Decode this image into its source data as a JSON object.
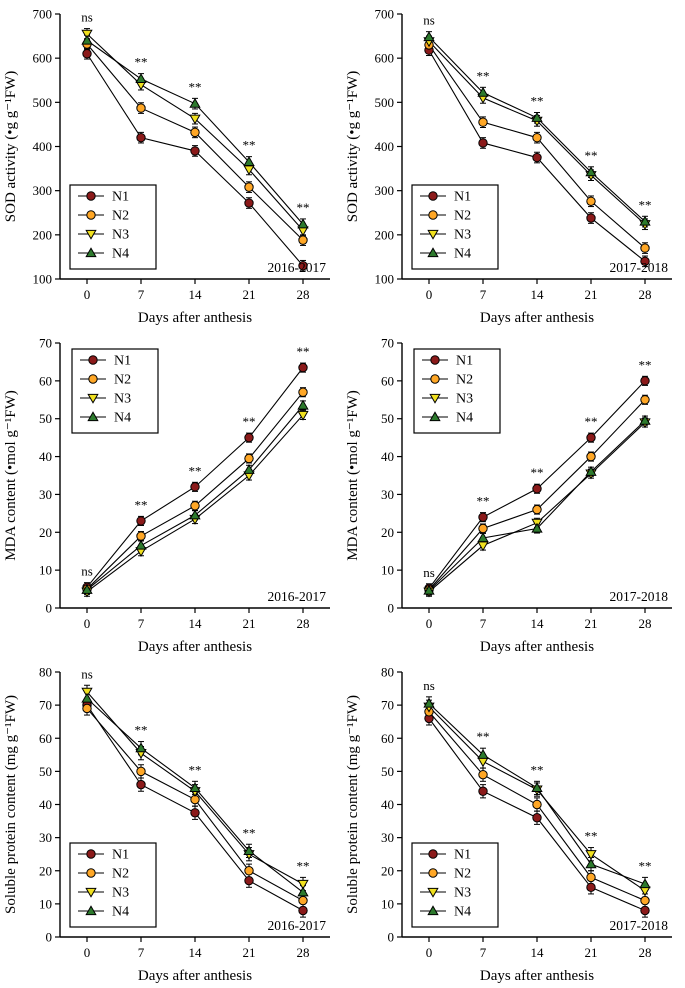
{
  "figure": {
    "bg": "#ffffff",
    "line_color": "#000000",
    "series_colors": {
      "N1": "#8b1a1a",
      "N2": "#ffa726",
      "N3": "#f0e01f",
      "N4": "#2d7a2d"
    },
    "marker_shapes": {
      "N1": "circle",
      "N2": "circle",
      "N3": "triangle-down",
      "N4": "triangle-up"
    }
  },
  "chart_data": [
    {
      "type": "line",
      "year_label": "2016-2017",
      "xlabel": "Days after anthesis",
      "ylabel": "SOD activity (•g g⁻¹FW)",
      "x": [
        0,
        7,
        14,
        21,
        28
      ],
      "xlim": [
        -3.5,
        31.5
      ],
      "ylim": [
        100,
        700
      ],
      "yticks": [
        100,
        200,
        300,
        400,
        500,
        600,
        700
      ],
      "legend_position": "bottom-left",
      "error": 12,
      "annotations": [
        {
          "x": 0,
          "label": "ns"
        },
        {
          "x": 7,
          "label": "**"
        },
        {
          "x": 14,
          "label": "**"
        },
        {
          "x": 21,
          "label": "**"
        },
        {
          "x": 28,
          "label": "**"
        }
      ],
      "series": [
        {
          "name": "N1",
          "values": [
            610,
            420,
            390,
            272,
            130
          ]
        },
        {
          "name": "N2",
          "values": [
            632,
            487,
            432,
            308,
            188
          ]
        },
        {
          "name": "N3",
          "values": [
            655,
            540,
            463,
            348,
            210
          ]
        },
        {
          "name": "N4",
          "values": [
            640,
            553,
            497,
            365,
            224
          ]
        }
      ]
    },
    {
      "type": "line",
      "year_label": "2017-2018",
      "xlabel": "Days after anthesis",
      "ylabel": "SOD activity (•g g⁻¹FW)",
      "x": [
        0,
        7,
        14,
        21,
        28
      ],
      "xlim": [
        -3.5,
        31.5
      ],
      "ylim": [
        100,
        700
      ],
      "yticks": [
        100,
        200,
        300,
        400,
        500,
        600,
        700
      ],
      "legend_position": "bottom-left",
      "error": 12,
      "annotations": [
        {
          "x": 0,
          "label": "ns"
        },
        {
          "x": 7,
          "label": "**"
        },
        {
          "x": 14,
          "label": "**"
        },
        {
          "x": 21,
          "label": "**"
        },
        {
          "x": 28,
          "label": "**"
        }
      ],
      "series": [
        {
          "name": "N1",
          "values": [
            618,
            408,
            375,
            238,
            140
          ]
        },
        {
          "name": "N2",
          "values": [
            630,
            455,
            420,
            276,
            170
          ]
        },
        {
          "name": "N3",
          "values": [
            638,
            510,
            458,
            335,
            224
          ]
        },
        {
          "name": "N4",
          "values": [
            648,
            522,
            465,
            342,
            230
          ]
        }
      ]
    },
    {
      "type": "line",
      "year_label": "2016-2017",
      "xlabel": "Days after anthesis",
      "ylabel": "MDA content (•mol g⁻¹FW)",
      "x": [
        0,
        7,
        14,
        21,
        28
      ],
      "xlim": [
        -3.5,
        31.5
      ],
      "ylim": [
        0,
        70
      ],
      "yticks": [
        0,
        10,
        20,
        30,
        40,
        50,
        60,
        70
      ],
      "legend_position": "top-left",
      "error": 1.2,
      "annotations": [
        {
          "x": 0,
          "label": "ns"
        },
        {
          "x": 7,
          "label": "**"
        },
        {
          "x": 14,
          "label": "**"
        },
        {
          "x": 21,
          "label": "**"
        },
        {
          "x": 28,
          "label": "**"
        }
      ],
      "series": [
        {
          "name": "N1",
          "values": [
            5.5,
            23,
            32,
            45,
            63.5
          ]
        },
        {
          "name": "N2",
          "values": [
            5.0,
            19,
            27,
            39.5,
            57
          ]
        },
        {
          "name": "N3",
          "values": [
            4.3,
            15,
            23.5,
            35,
            51
          ]
        },
        {
          "name": "N4",
          "values": [
            4.8,
            16.5,
            24.5,
            36.5,
            53.5
          ]
        }
      ]
    },
    {
      "type": "line",
      "year_label": "2017-2018",
      "xlabel": "Days after anthesis",
      "ylabel": "MDA content (•mol g⁻¹FW)",
      "x": [
        0,
        7,
        14,
        21,
        28
      ],
      "xlim": [
        -3.5,
        31.5
      ],
      "ylim": [
        0,
        70
      ],
      "yticks": [
        0,
        10,
        20,
        30,
        40,
        50,
        60,
        70
      ],
      "legend_position": "top-left",
      "error": 1.2,
      "annotations": [
        {
          "x": 0,
          "label": "ns"
        },
        {
          "x": 7,
          "label": "**"
        },
        {
          "x": 14,
          "label": "**"
        },
        {
          "x": 21,
          "label": "**"
        },
        {
          "x": 28,
          "label": "**"
        }
      ],
      "series": [
        {
          "name": "N1",
          "values": [
            5.2,
            24,
            31.5,
            45,
            60
          ]
        },
        {
          "name": "N2",
          "values": [
            4.8,
            21,
            26,
            40,
            55
          ]
        },
        {
          "name": "N3",
          "values": [
            4.3,
            16.5,
            22.5,
            35.5,
            49
          ]
        },
        {
          "name": "N4",
          "values": [
            4.6,
            18.5,
            21,
            36,
            49.5
          ]
        }
      ]
    },
    {
      "type": "line",
      "year_label": "2016-2017",
      "xlabel": "Days  after anthesis",
      "ylabel": "Soluble protein content (mg g⁻¹FW)",
      "x": [
        0,
        7,
        14,
        21,
        28
      ],
      "xlim": [
        -3.5,
        31.5
      ],
      "ylim": [
        0,
        80
      ],
      "yticks": [
        0,
        10,
        20,
        30,
        40,
        50,
        60,
        70,
        80
      ],
      "legend_position": "bottom-left",
      "error": 2,
      "annotations": [
        {
          "x": 0,
          "label": "ns"
        },
        {
          "x": 7,
          "label": "**"
        },
        {
          "x": 14,
          "label": "**"
        },
        {
          "x": 21,
          "label": "**"
        },
        {
          "x": 28,
          "label": "**"
        }
      ],
      "series": [
        {
          "name": "N1",
          "values": [
            70,
            46,
            37.5,
            17,
            8
          ]
        },
        {
          "name": "N2",
          "values": [
            69,
            50,
            41.5,
            20,
            11
          ]
        },
        {
          "name": "N3",
          "values": [
            74,
            55.5,
            44,
            25,
            16
          ]
        },
        {
          "name": "N4",
          "values": [
            72,
            57,
            45,
            26,
            13.5
          ]
        }
      ]
    },
    {
      "type": "line",
      "year_label": "2017-2018",
      "xlabel": "Days after anthesis",
      "ylabel": "Soluble protein content (mg g⁻¹FW)",
      "x": [
        0,
        7,
        14,
        21,
        28
      ],
      "xlim": [
        -3.5,
        31.5
      ],
      "ylim": [
        0,
        80
      ],
      "yticks": [
        0,
        10,
        20,
        30,
        40,
        50,
        60,
        70,
        80
      ],
      "legend_position": "bottom-left",
      "error": 2,
      "annotations": [
        {
          "x": 0,
          "label": "ns"
        },
        {
          "x": 7,
          "label": "**"
        },
        {
          "x": 14,
          "label": "**"
        },
        {
          "x": 21,
          "label": "**"
        },
        {
          "x": 28,
          "label": "**"
        }
      ],
      "series": [
        {
          "name": "N1",
          "values": [
            66,
            44,
            36,
            15,
            8
          ]
        },
        {
          "name": "N2",
          "values": [
            68,
            49,
            40,
            18,
            11
          ]
        },
        {
          "name": "N3",
          "values": [
            69.5,
            53,
            44.5,
            25,
            14
          ]
        },
        {
          "name": "N4",
          "values": [
            70.5,
            55,
            45,
            22,
            16
          ]
        }
      ]
    }
  ]
}
